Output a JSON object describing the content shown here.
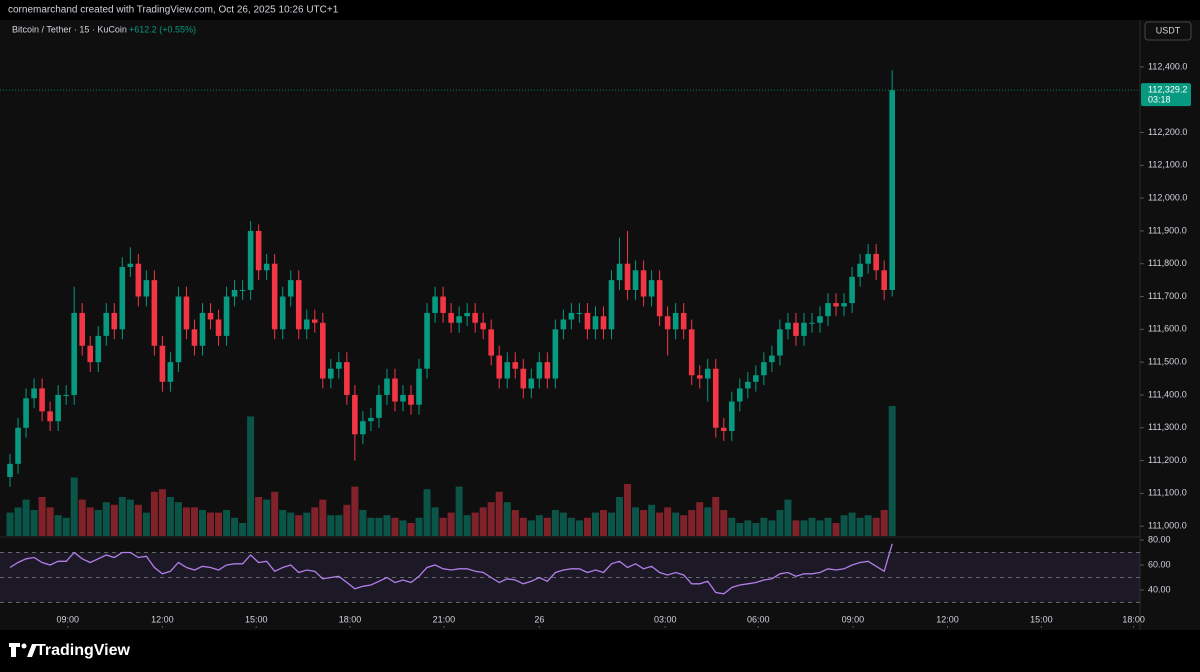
{
  "chart_data": {
    "type": "candlestick",
    "title": "cornemarchand created with TradingView.com, Oct 26, 2025 10:26 UTC+1",
    "symbol": "Bitcoin / Tether · 15 · KuCoin",
    "change": "+612.2 (+0.55%)",
    "currency": "USDT",
    "logo": "TradingView",
    "last_price_label": "112,329.2",
    "countdown": "03:18",
    "up_color": "#089981",
    "down_color": "#f23645",
    "rsi_color": "#b07fe8",
    "open": [
      111150,
      111190,
      111300,
      111390,
      111420,
      111350,
      111320,
      111400,
      111400,
      111650,
      111550,
      111500,
      111580,
      111650,
      111600,
      111790,
      111800,
      111700,
      111750,
      111550,
      111440,
      111500,
      111700,
      111600,
      111550,
      111650,
      111630,
      111580,
      111700,
      111720,
      111720,
      111900,
      111780,
      111800,
      111600,
      111700,
      111750,
      111600,
      111630,
      111620,
      111450,
      111480,
      111500,
      111400,
      111280,
      111320,
      111330,
      111400,
      111450,
      111380,
      111400,
      111370,
      111480,
      111650,
      111700,
      111650,
      111620,
      111640,
      111650,
      111620,
      111600,
      111520,
      111450,
      111500,
      111480,
      111420,
      111450,
      111500,
      111450,
      111600,
      111630,
      111650,
      111650,
      111600,
      111640,
      111600,
      111750,
      111800,
      111720,
      111780,
      111700,
      111750,
      111640,
      111600,
      111650,
      111600,
      111460,
      111450,
      111480,
      111300,
      111290,
      111380,
      111420,
      111440,
      111460,
      111500,
      111520,
      111600,
      111620,
      111580,
      111620,
      111620,
      111640,
      111680,
      111670,
      111680,
      111760,
      111800,
      111830,
      111780,
      111720
    ],
    "high": [
      111220,
      111330,
      111420,
      111450,
      111450,
      111380,
      111430,
      111430,
      111730,
      111680,
      111580,
      111610,
      111680,
      111680,
      111820,
      111850,
      111830,
      111780,
      111780,
      111580,
      111530,
      111730,
      111730,
      111630,
      111680,
      111680,
      111660,
      111730,
      111750,
      111750,
      111930,
      111920,
      111830,
      111830,
      111730,
      111780,
      111780,
      111660,
      111660,
      111650,
      111510,
      111530,
      111530,
      111430,
      111350,
      111360,
      111430,
      111480,
      111480,
      111430,
      111430,
      111510,
      111680,
      111730,
      111730,
      111680,
      111670,
      111680,
      111680,
      111650,
      111630,
      111550,
      111530,
      111530,
      111510,
      111480,
      111530,
      111530,
      111630,
      111660,
      111680,
      111680,
      111680,
      111670,
      111670,
      111780,
      111880,
      111900,
      111810,
      111810,
      111780,
      111780,
      111670,
      111680,
      111680,
      111630,
      111490,
      111510,
      111510,
      111330,
      111410,
      111450,
      111470,
      111490,
      111530,
      111550,
      111630,
      111650,
      111650,
      111650,
      111650,
      111670,
      111710,
      111710,
      111710,
      111790,
      111830,
      111860,
      111860,
      111810,
      112390
    ],
    "low": [
      111120,
      111160,
      111270,
      111360,
      111320,
      111290,
      111290,
      111370,
      111370,
      111520,
      111470,
      111470,
      111550,
      111570,
      111570,
      111760,
      111670,
      111670,
      111520,
      111410,
      111410,
      111470,
      111570,
      111520,
      111520,
      111600,
      111550,
      111550,
      111670,
      111690,
      111690,
      111750,
      111750,
      111570,
      111570,
      111670,
      111570,
      111570,
      111590,
      111420,
      111420,
      111450,
      111370,
      111200,
      111250,
      111290,
      111300,
      111370,
      111350,
      111350,
      111340,
      111340,
      111450,
      111620,
      111620,
      111590,
      111590,
      111610,
      111590,
      111570,
      111490,
      111420,
      111420,
      111450,
      111390,
      111390,
      111420,
      111420,
      111420,
      111570,
      111600,
      111620,
      111570,
      111570,
      111570,
      111570,
      111720,
      111690,
      111690,
      111670,
      111670,
      111610,
      111520,
      111570,
      111570,
      111430,
      111420,
      111380,
      111270,
      111260,
      111260,
      111350,
      111390,
      111410,
      111430,
      111470,
      111490,
      111570,
      111550,
      111550,
      111590,
      111590,
      111610,
      111640,
      111640,
      111650,
      111730,
      111770,
      111750,
      111690,
      111700
    ],
    "close": [
      111190,
      111300,
      111390,
      111420,
      111350,
      111320,
      111400,
      111400,
      111650,
      111550,
      111500,
      111580,
      111650,
      111600,
      111790,
      111800,
      111700,
      111750,
      111550,
      111440,
      111500,
      111700,
      111600,
      111550,
      111650,
      111630,
      111580,
      111700,
      111720,
      111720,
      111900,
      111780,
      111800,
      111600,
      111700,
      111750,
      111600,
      111630,
      111620,
      111450,
      111480,
      111500,
      111400,
      111280,
      111320,
      111330,
      111400,
      111450,
      111380,
      111400,
      111370,
      111480,
      111650,
      111700,
      111650,
      111620,
      111640,
      111650,
      111620,
      111600,
      111520,
      111450,
      111500,
      111480,
      111420,
      111450,
      111500,
      111450,
      111600,
      111630,
      111650,
      111650,
      111600,
      111640,
      111600,
      111750,
      111800,
      111720,
      111780,
      111700,
      111750,
      111640,
      111600,
      111650,
      111600,
      111460,
      111450,
      111480,
      111300,
      111290,
      111380,
      111420,
      111440,
      111460,
      111500,
      111520,
      111600,
      111620,
      111580,
      111620,
      111620,
      111640,
      111680,
      111670,
      111680,
      111760,
      111800,
      111830,
      111780,
      111720,
      112329.2
    ],
    "volume": [
      18,
      22,
      28,
      20,
      30,
      22,
      16,
      14,
      45,
      28,
      22,
      20,
      26,
      24,
      30,
      28,
      24,
      18,
      34,
      36,
      30,
      26,
      22,
      22,
      20,
      18,
      18,
      20,
      14,
      10,
      92,
      30,
      28,
      34,
      20,
      18,
      16,
      18,
      22,
      28,
      16,
      16,
      24,
      38,
      20,
      14,
      14,
      16,
      14,
      12,
      10,
      14,
      36,
      22,
      14,
      18,
      38,
      16,
      18,
      22,
      26,
      34,
      26,
      20,
      14,
      12,
      16,
      14,
      20,
      18,
      14,
      12,
      14,
      18,
      20,
      18,
      30,
      40,
      22,
      20,
      24,
      18,
      22,
      18,
      16,
      20,
      26,
      22,
      30,
      20,
      14,
      10,
      12,
      10,
      14,
      12,
      20,
      28,
      12,
      12,
      14,
      12,
      14,
      10,
      16,
      18,
      14,
      16,
      14,
      20,
      100
    ],
    "rsi": [
      58,
      62,
      65,
      66,
      62,
      60,
      63,
      63,
      70,
      65,
      62,
      65,
      68,
      66,
      70,
      70,
      66,
      67,
      58,
      53,
      55,
      62,
      58,
      56,
      59,
      58,
      56,
      60,
      61,
      61,
      68,
      62,
      63,
      55,
      58,
      60,
      54,
      56,
      55,
      49,
      50,
      51,
      46,
      41,
      43,
      44,
      47,
      50,
      46,
      48,
      46,
      51,
      58,
      60,
      57,
      56,
      57,
      57,
      55,
      54,
      50,
      46,
      49,
      48,
      45,
      47,
      50,
      47,
      54,
      56,
      57,
      57,
      54,
      56,
      54,
      61,
      63,
      58,
      61,
      57,
      59,
      54,
      52,
      54,
      52,
      45,
      45,
      47,
      38,
      37,
      42,
      44,
      45,
      46,
      48,
      49,
      53,
      54,
      51,
      53,
      53,
      54,
      57,
      56,
      57,
      60,
      62,
      63,
      59,
      55,
      77
    ],
    "xlim": [
      -1.25,
      140.9
    ],
    "xticks": [
      {
        "value": 7.2,
        "label": "09:00"
      },
      {
        "value": 19.0,
        "label": "12:00"
      },
      {
        "value": 30.7,
        "label": "15:00"
      },
      {
        "value": 42.4,
        "label": "18:00"
      },
      {
        "value": 54.1,
        "label": "21:00"
      },
      {
        "value": 66.0,
        "label": "26"
      },
      {
        "value": 81.7,
        "label": "03:00"
      },
      {
        "value": 93.3,
        "label": "06:00"
      },
      {
        "value": 105.1,
        "label": "09:00"
      },
      {
        "value": 116.9,
        "label": "12:00"
      },
      {
        "value": 128.6,
        "label": "15:00"
      },
      {
        "value": 140.1,
        "label": "18:00"
      }
    ],
    "ylim": [
      110970,
      112543
    ],
    "yticks": [
      {
        "value": 111000,
        "label": "111,000.0"
      },
      {
        "value": 111100,
        "label": "111,100.0"
      },
      {
        "value": 111200,
        "label": "111,200.0"
      },
      {
        "value": 111300,
        "label": "111,300.0"
      },
      {
        "value": 111400,
        "label": "111,400.0"
      },
      {
        "value": 111500,
        "label": "111,500.0"
      },
      {
        "value": 111600,
        "label": "111,600.0"
      },
      {
        "value": 111700,
        "label": "111,700.0"
      },
      {
        "value": 111800,
        "label": "111,800.0"
      },
      {
        "value": 111900,
        "label": "111,900.0"
      },
      {
        "value": 112000,
        "label": "112,000.0"
      },
      {
        "value": 112100,
        "label": "112,100.0"
      },
      {
        "value": 112200,
        "label": "112,200.0"
      },
      {
        "value": 112400,
        "label": "112,400.0"
      }
    ],
    "rsi_ylim": [
      9.6,
      82.4
    ],
    "rsi_yticks": [
      {
        "value": 80,
        "label": "80.00"
      },
      {
        "value": 60,
        "label": "60.00"
      },
      {
        "value": 40,
        "label": "40.00"
      }
    ],
    "rsi_levels": [
      70,
      50,
      30
    ]
  }
}
